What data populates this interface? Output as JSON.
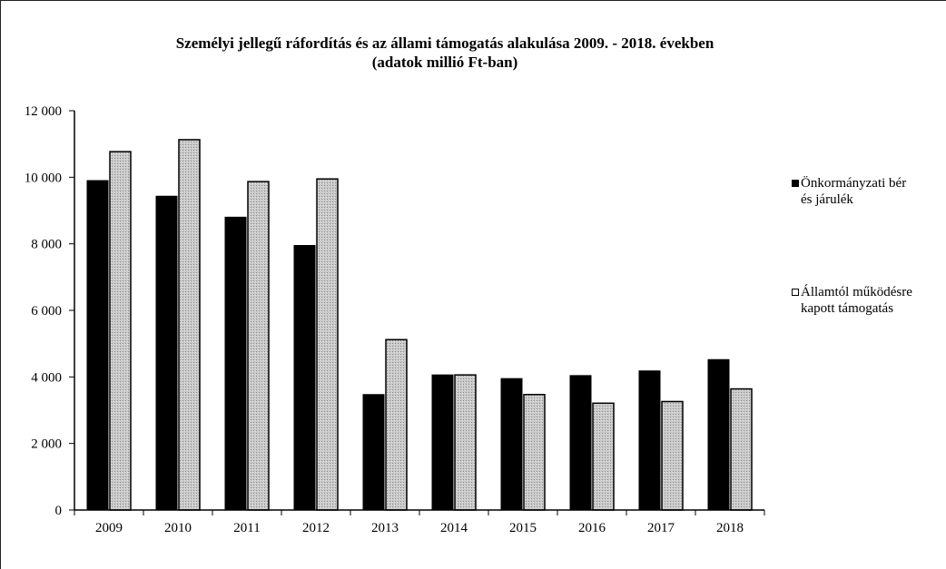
{
  "chart_data": {
    "type": "bar",
    "title": "Személyi jellegű ráfordítás és az állami támogatás alakulása 2009. - 2018. években",
    "subtitle": "(adatok millió Ft-ban)",
    "categories": [
      "2009",
      "2010",
      "2011",
      "2012",
      "2013",
      "2014",
      "2015",
      "2016",
      "2017",
      "2018"
    ],
    "series": [
      {
        "name_line1": "Önkormányzati bér",
        "name_line2": "és járulék",
        "color": "#000000",
        "values": [
          9900,
          9430,
          8800,
          7950,
          3470,
          4060,
          3950,
          4040,
          4180,
          4520
        ]
      },
      {
        "name_line1": "Államtól működésre",
        "name_line2": "kapott támogatás",
        "color": "#c9c9c9",
        "values": [
          10770,
          11130,
          9870,
          9950,
          5120,
          4060,
          3470,
          3210,
          3260,
          3640
        ]
      }
    ],
    "ylim": [
      0,
      12000
    ],
    "yticks": [
      0,
      2000,
      4000,
      6000,
      8000,
      10000,
      12000
    ],
    "ytick_labels": [
      "0",
      "2 000",
      "4 000",
      "6 000",
      "8 000",
      "10 000",
      "12 000"
    ],
    "grid": false,
    "legend_position": "right"
  }
}
